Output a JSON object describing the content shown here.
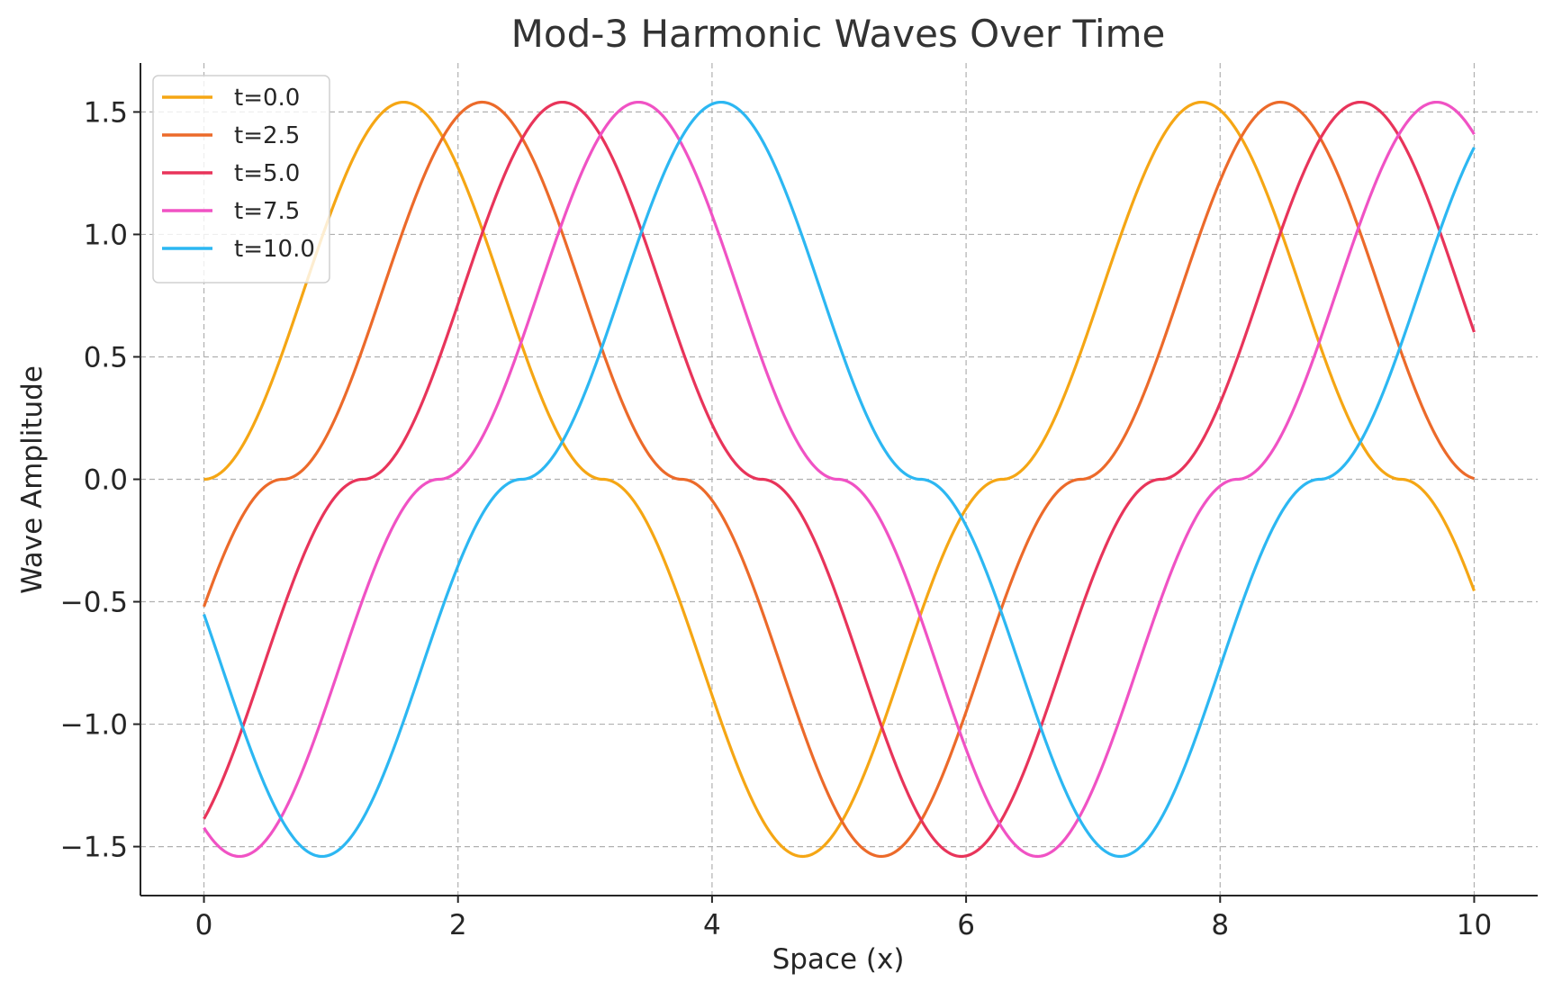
{
  "chart_data": {
    "type": "line",
    "title": "Mod-3 Harmonic Waves Over Time",
    "xlabel": "Space (x)",
    "ylabel": "Wave Amplitude",
    "xlim": [
      -0.5,
      10.5
    ],
    "ylim": [
      -1.7,
      1.7
    ],
    "xticks": [
      0,
      2,
      4,
      6,
      8,
      10
    ],
    "xtick_labels": [
      "0",
      "2",
      "4",
      "6",
      "8",
      "10"
    ],
    "yticks": [
      1.5,
      1.0,
      0.5,
      0.0,
      -0.5,
      -1.0,
      -1.5
    ],
    "ytick_labels": [
      "1.5",
      "1.0",
      "0.5",
      "0.0",
      "−0.5",
      "−1.0",
      "−1.5"
    ],
    "grid": true,
    "legend_position": "top-left",
    "model": "y = (sin(x - 0.5*t) mod 3) - 1.5 + sin(x - 0.5*t)... sampled; each series plotted as 3-valued harmonic: y = 1.5*sin(x*2.5 - t) style oscillation between -1.54 and 1.54",
    "series": [
      {
        "name": "t=0.0",
        "color": "#f5a614",
        "t": 0.0
      },
      {
        "name": "t=2.5",
        "color": "#ec6a2a",
        "t": 2.5
      },
      {
        "name": "t=5.0",
        "color": "#e8345a",
        "t": 5.0
      },
      {
        "name": "t=7.5",
        "color": "#f052c4",
        "t": 7.5
      },
      {
        "name": "t=10.0",
        "color": "#2cb7f2",
        "t": 10.0
      }
    ]
  }
}
